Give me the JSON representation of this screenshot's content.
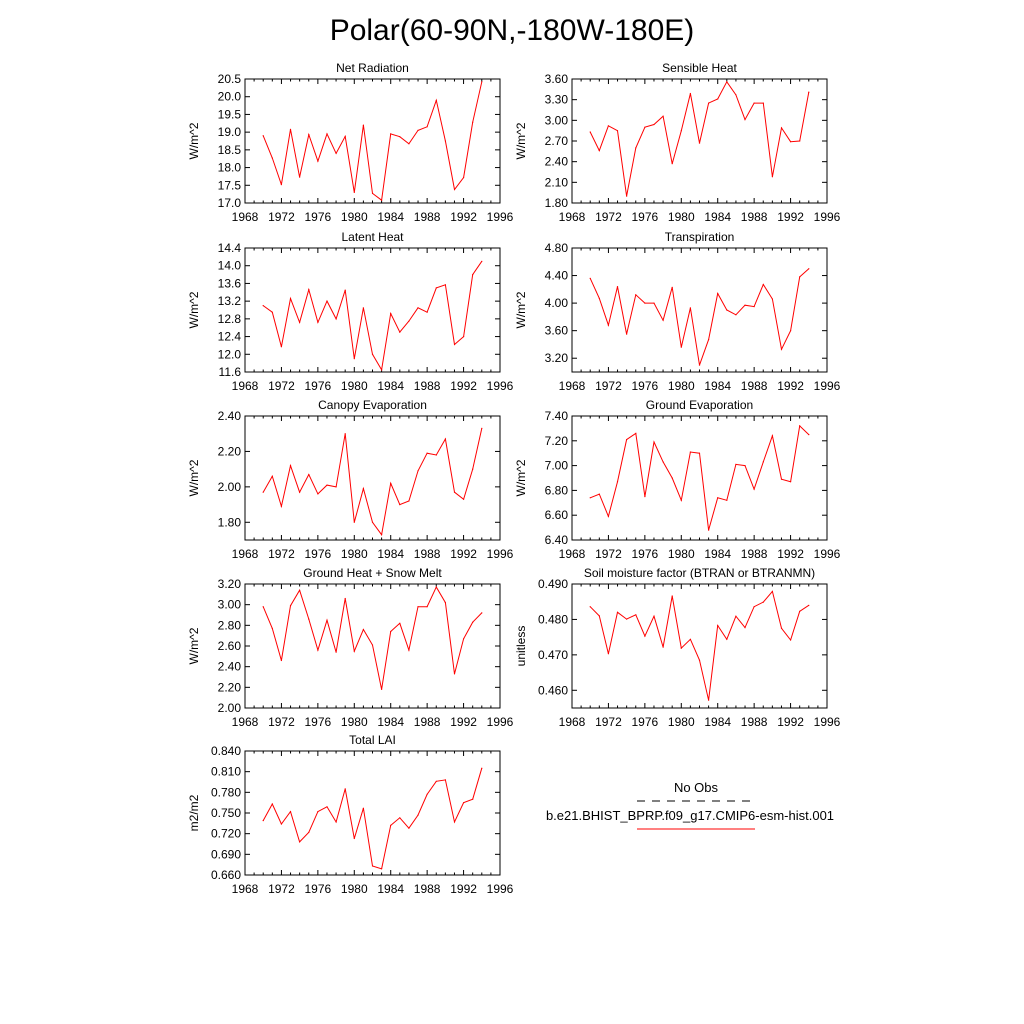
{
  "figure_title": "Polar(60-90N,-180W-180E)",
  "chart_data": [
    {
      "type": "line",
      "title": "Net Radiation",
      "ylabel": "W/m^2",
      "xlim": [
        1968,
        1996
      ],
      "xticks": [
        "1968",
        "1972",
        "1976",
        "1980",
        "1984",
        "1988",
        "1992",
        "1996"
      ],
      "ylim": [
        17.0,
        20.5
      ],
      "yticks": [
        "17.0",
        "17.5",
        "18.0",
        "18.5",
        "19.0",
        "19.5",
        "20.0",
        "20.5"
      ],
      "series": [
        {
          "color": "#ff0000",
          "x": [
            1970,
            1971,
            1972,
            1973,
            1974,
            1975,
            1976,
            1977,
            1978,
            1979,
            1980,
            1981,
            1982,
            1983,
            1984,
            1985,
            1986,
            1987,
            1988,
            1989,
            1990,
            1991,
            1992,
            1993,
            1994
          ],
          "y": [
            18.9,
            18.27,
            17.52,
            19.08,
            17.73,
            18.93,
            18.18,
            18.95,
            18.4,
            18.88,
            17.3,
            19.2,
            17.27,
            17.08,
            18.95,
            18.87,
            18.67,
            19.05,
            19.15,
            19.9,
            18.75,
            17.38,
            17.72,
            19.28,
            20.42
          ]
        }
      ]
    },
    {
      "type": "line",
      "title": "Sensible Heat",
      "ylabel": "W/m^2",
      "xlim": [
        1968,
        1996
      ],
      "xticks": [
        "1968",
        "1972",
        "1976",
        "1980",
        "1984",
        "1988",
        "1992",
        "1996"
      ],
      "ylim": [
        1.8,
        3.6
      ],
      "yticks": [
        "1.80",
        "2.10",
        "2.40",
        "2.70",
        "3.00",
        "3.30",
        "3.60"
      ],
      "series": [
        {
          "color": "#ff0000",
          "x": [
            1970,
            1971,
            1972,
            1973,
            1974,
            1975,
            1976,
            1977,
            1978,
            1979,
            1980,
            1981,
            1982,
            1983,
            1984,
            1985,
            1986,
            1987,
            1988,
            1989,
            1990,
            1991,
            1992,
            1993,
            1994
          ],
          "y": [
            2.83,
            2.56,
            2.92,
            2.85,
            1.9,
            2.6,
            2.9,
            2.94,
            3.06,
            2.37,
            2.85,
            3.39,
            2.67,
            3.25,
            3.31,
            3.56,
            3.37,
            3.01,
            3.25,
            3.25,
            2.18,
            2.89,
            2.69,
            2.7,
            3.41
          ]
        }
      ]
    },
    {
      "type": "line",
      "title": "Latent Heat",
      "ylabel": "W/m^2",
      "xlim": [
        1968,
        1996
      ],
      "xticks": [
        "1968",
        "1972",
        "1976",
        "1980",
        "1984",
        "1988",
        "1992",
        "1996"
      ],
      "ylim": [
        11.6,
        14.4
      ],
      "yticks": [
        "11.6",
        "12.0",
        "12.4",
        "12.8",
        "13.2",
        "13.6",
        "14.0",
        "14.4"
      ],
      "series": [
        {
          "color": "#ff0000",
          "x": [
            1970,
            1971,
            1972,
            1973,
            1974,
            1975,
            1976,
            1977,
            1978,
            1979,
            1980,
            1981,
            1982,
            1983,
            1984,
            1985,
            1986,
            1987,
            1988,
            1989,
            1990,
            1991,
            1992,
            1993,
            1994
          ],
          "y": [
            13.1,
            12.95,
            12.17,
            13.26,
            12.72,
            13.46,
            12.72,
            13.2,
            12.8,
            13.45,
            11.9,
            13.05,
            12.0,
            11.65,
            12.92,
            12.5,
            12.75,
            13.05,
            12.95,
            13.5,
            13.57,
            12.22,
            12.4,
            13.8,
            14.1
          ]
        }
      ]
    },
    {
      "type": "line",
      "title": "Transpiration",
      "ylabel": "W/m^2",
      "xlim": [
        1968,
        1996
      ],
      "xticks": [
        "1968",
        "1972",
        "1976",
        "1980",
        "1984",
        "1988",
        "1992",
        "1996"
      ],
      "ylim": [
        3.0,
        4.8
      ],
      "yticks": [
        "3.20",
        "3.60",
        "4.00",
        "4.40",
        "4.80"
      ],
      "series": [
        {
          "color": "#ff0000",
          "x": [
            1970,
            1971,
            1972,
            1973,
            1974,
            1975,
            1976,
            1977,
            1978,
            1979,
            1980,
            1981,
            1982,
            1983,
            1984,
            1985,
            1986,
            1987,
            1988,
            1989,
            1990,
            1991,
            1992,
            1993,
            1994
          ],
          "y": [
            4.36,
            4.07,
            3.68,
            4.24,
            3.55,
            4.12,
            4.0,
            4.0,
            3.75,
            4.23,
            3.36,
            3.93,
            3.1,
            3.47,
            4.14,
            3.9,
            3.83,
            3.97,
            3.95,
            4.27,
            4.06,
            3.33,
            3.6,
            4.38,
            4.5
          ]
        }
      ]
    },
    {
      "type": "line",
      "title": "Canopy Evaporation",
      "ylabel": "W/m^2",
      "xlim": [
        1968,
        1996
      ],
      "xticks": [
        "1968",
        "1972",
        "1976",
        "1980",
        "1984",
        "1988",
        "1992",
        "1996"
      ],
      "ylim": [
        1.7,
        2.4
      ],
      "yticks": [
        "1.80",
        "2.00",
        "2.20",
        "2.40"
      ],
      "series": [
        {
          "color": "#ff0000",
          "x": [
            1970,
            1971,
            1972,
            1973,
            1974,
            1975,
            1976,
            1977,
            1978,
            1979,
            1980,
            1981,
            1982,
            1983,
            1984,
            1985,
            1986,
            1987,
            1988,
            1989,
            1990,
            1991,
            1992,
            1993,
            1994
          ],
          "y": [
            1.97,
            2.06,
            1.89,
            2.12,
            1.97,
            2.07,
            1.96,
            2.01,
            2.0,
            2.3,
            1.8,
            1.99,
            1.8,
            1.73,
            2.02,
            1.9,
            1.92,
            2.09,
            2.19,
            2.18,
            2.27,
            1.97,
            1.93,
            2.1,
            2.33
          ]
        }
      ]
    },
    {
      "type": "line",
      "title": "Ground Evaporation",
      "ylabel": "W/m^2",
      "xlim": [
        1968,
        1996
      ],
      "xticks": [
        "1968",
        "1972",
        "1976",
        "1980",
        "1984",
        "1988",
        "1992",
        "1996"
      ],
      "ylim": [
        6.4,
        7.4
      ],
      "yticks": [
        "6.40",
        "6.60",
        "6.80",
        "7.00",
        "7.20",
        "7.40"
      ],
      "series": [
        {
          "color": "#ff0000",
          "x": [
            1970,
            1971,
            1972,
            1973,
            1974,
            1975,
            1976,
            1977,
            1978,
            1979,
            1980,
            1981,
            1982,
            1983,
            1984,
            1985,
            1986,
            1987,
            1988,
            1989,
            1990,
            1991,
            1992,
            1993,
            1994
          ],
          "y": [
            6.74,
            6.77,
            6.59,
            6.87,
            7.21,
            7.26,
            6.75,
            7.19,
            7.03,
            6.9,
            6.72,
            7.11,
            7.1,
            6.48,
            6.74,
            6.72,
            7.01,
            7.0,
            6.81,
            7.03,
            7.24,
            6.89,
            6.87,
            7.32,
            7.25
          ]
        }
      ]
    },
    {
      "type": "line",
      "title": "Ground Heat + Snow Melt",
      "ylabel": "W/m^2",
      "xlim": [
        1968,
        1996
      ],
      "xticks": [
        "1968",
        "1972",
        "1976",
        "1980",
        "1984",
        "1988",
        "1992",
        "1996"
      ],
      "ylim": [
        2.0,
        3.2
      ],
      "yticks": [
        "2.00",
        "2.20",
        "2.40",
        "2.60",
        "2.80",
        "3.00",
        "3.20"
      ],
      "series": [
        {
          "color": "#ff0000",
          "x": [
            1970,
            1971,
            1972,
            1973,
            1974,
            1975,
            1976,
            1977,
            1978,
            1979,
            1980,
            1981,
            1982,
            1983,
            1984,
            1985,
            1986,
            1987,
            1988,
            1989,
            1990,
            1991,
            1992,
            1993,
            1994
          ],
          "y": [
            2.98,
            2.77,
            2.46,
            2.99,
            3.14,
            2.86,
            2.56,
            2.85,
            2.54,
            3.06,
            2.55,
            2.76,
            2.61,
            2.18,
            2.74,
            2.82,
            2.56,
            2.98,
            2.98,
            3.17,
            3.02,
            2.33,
            2.67,
            2.83,
            2.92
          ]
        }
      ]
    },
    {
      "type": "line",
      "title": "Soil moisture factor (BTRAN or BTRANMN)",
      "ylabel": "unitless",
      "xlim": [
        1968,
        1996
      ],
      "xticks": [
        "1968",
        "1972",
        "1976",
        "1980",
        "1984",
        "1988",
        "1992",
        "1996"
      ],
      "ylim": [
        0.455,
        0.49
      ],
      "yticks": [
        "0.460",
        "0.470",
        "0.480",
        "0.490"
      ],
      "series": [
        {
          "color": "#ff0000",
          "x": [
            1970,
            1971,
            1972,
            1973,
            1974,
            1975,
            1976,
            1977,
            1978,
            1979,
            1980,
            1981,
            1982,
            1983,
            1984,
            1985,
            1986,
            1987,
            1988,
            1989,
            1990,
            1991,
            1992,
            1993,
            1994
          ],
          "y": [
            0.4836,
            0.481,
            0.4703,
            0.482,
            0.4801,
            0.4813,
            0.4753,
            0.4809,
            0.4722,
            0.4866,
            0.4719,
            0.4744,
            0.4685,
            0.4572,
            0.4783,
            0.4744,
            0.4809,
            0.4777,
            0.4836,
            0.4849,
            0.4879,
            0.4775,
            0.4742,
            0.4823,
            0.484
          ]
        }
      ]
    },
    {
      "type": "line",
      "title": "Total LAI",
      "ylabel": "m2/m2",
      "xlim": [
        1968,
        1996
      ],
      "xticks": [
        "1968",
        "1972",
        "1976",
        "1980",
        "1984",
        "1988",
        "1992",
        "1996"
      ],
      "ylim": [
        0.66,
        0.84
      ],
      "yticks": [
        "0.660",
        "0.690",
        "0.720",
        "0.750",
        "0.780",
        "0.810",
        "0.840"
      ],
      "series": [
        {
          "color": "#ff0000",
          "x": [
            1970,
            1971,
            1972,
            1973,
            1974,
            1975,
            1976,
            1977,
            1978,
            1979,
            1980,
            1981,
            1982,
            1983,
            1984,
            1985,
            1986,
            1987,
            1988,
            1989,
            1990,
            1991,
            1992,
            1993,
            1994
          ],
          "y": [
            0.739,
            0.763,
            0.734,
            0.752,
            0.708,
            0.722,
            0.752,
            0.759,
            0.737,
            0.785,
            0.713,
            0.757,
            0.673,
            0.669,
            0.732,
            0.743,
            0.728,
            0.747,
            0.777,
            0.796,
            0.798,
            0.737,
            0.765,
            0.77,
            0.815
          ]
        }
      ]
    }
  ],
  "legend": {
    "items": [
      {
        "label": "No Obs",
        "color": "#000000",
        "dash": "dashed"
      },
      {
        "label": "b.e21.BHIST_BPRP.f09_g17.CMIP6-esm-hist.001",
        "color": "#ff0000",
        "dash": "solid"
      }
    ]
  }
}
